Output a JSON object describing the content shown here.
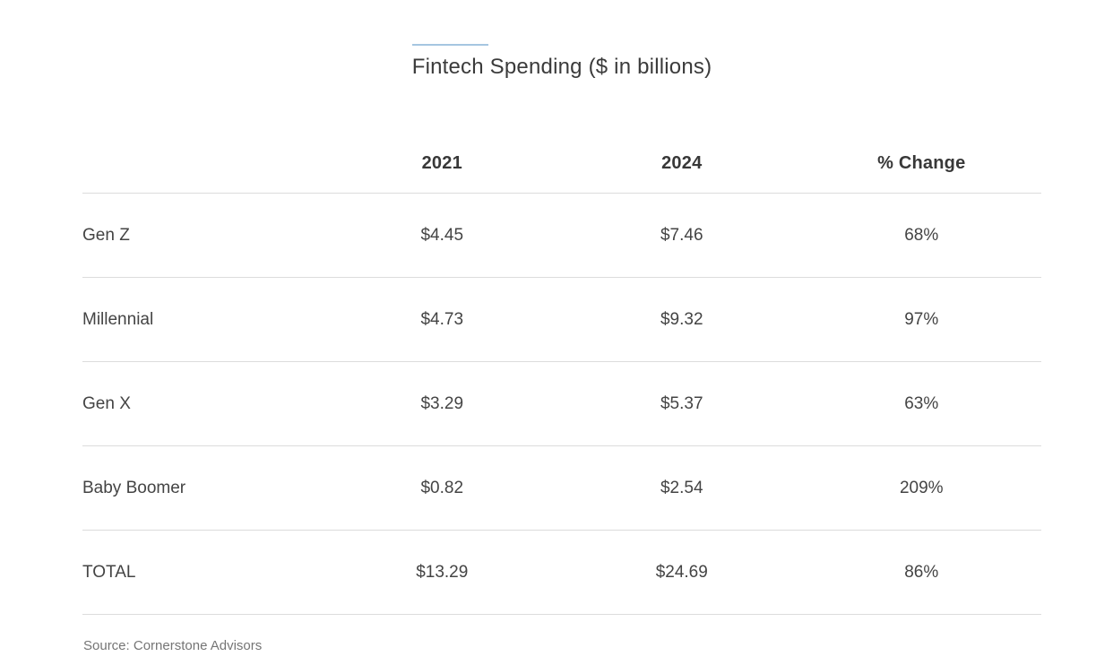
{
  "title": "Fintech Spending ($ in billions)",
  "source": "Source: Cornerstone Advisors",
  "colors": {
    "accent_line": "#a6c6e1",
    "row_divider": "#dcdcdc",
    "heading_text": "#383838",
    "body_text": "#444444",
    "source_text": "#757575",
    "background": "#ffffff"
  },
  "chart_data": {
    "type": "table",
    "title": "Fintech Spending ($ in billions)",
    "columns": [
      "",
      "2021",
      "2024",
      "% Change"
    ],
    "rows": [
      [
        "Gen Z",
        "$4.45",
        "$7.46",
        "68%"
      ],
      [
        "Millennial",
        "$4.73",
        "$9.32",
        "97%"
      ],
      [
        "Gen X",
        "$3.29",
        "$5.37",
        "63%"
      ],
      [
        "Baby Boomer",
        "$0.82",
        "$2.54",
        "209%"
      ],
      [
        "TOTAL",
        "$13.29",
        "$24.69",
        "86%"
      ]
    ],
    "series": [
      {
        "name": "2021",
        "values": [
          4.45,
          4.73,
          3.29,
          0.82,
          13.29
        ]
      },
      {
        "name": "2024",
        "values": [
          7.46,
          9.32,
          5.37,
          2.54,
          24.69
        ]
      },
      {
        "name": "% Change",
        "values": [
          68,
          97,
          63,
          209,
          86
        ]
      }
    ],
    "categories": [
      "Gen Z",
      "Millennial",
      "Gen X",
      "Baby Boomer",
      "TOTAL"
    ],
    "source": "Source: Cornerstone Advisors",
    "layout": {
      "grid": "horizontal-row-dividers-only",
      "value_alignment": "center",
      "label_alignment": "left"
    }
  }
}
